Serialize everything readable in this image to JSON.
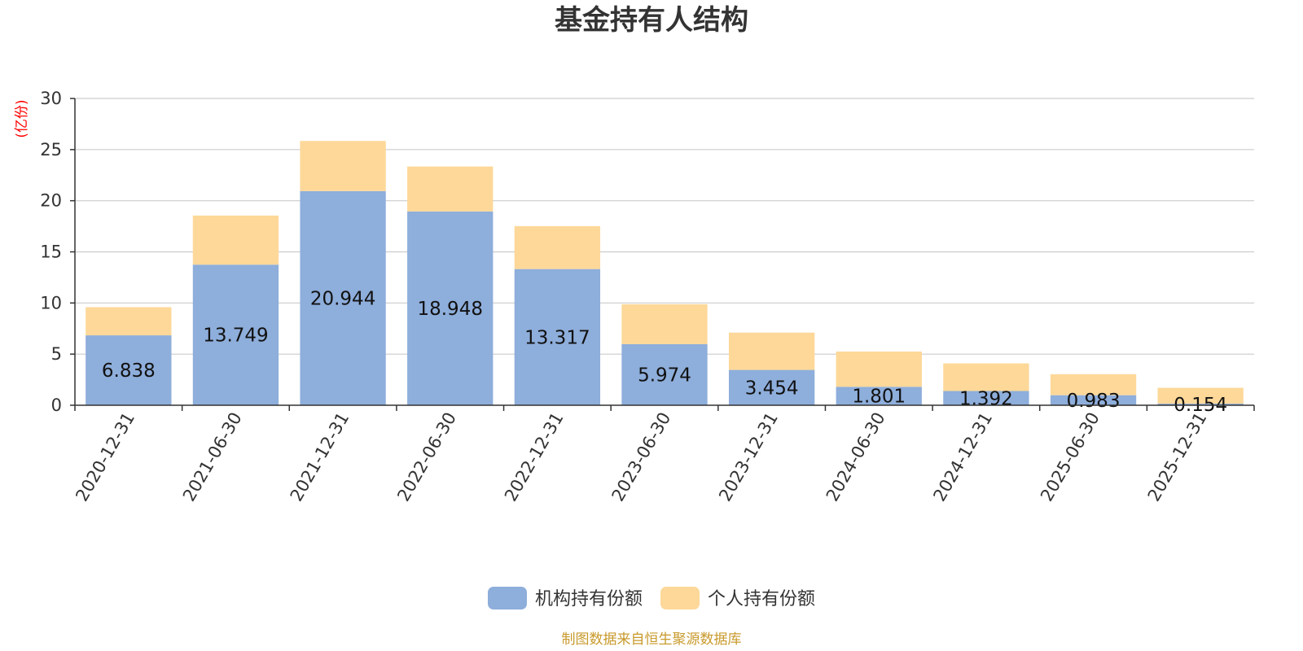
{
  "chart_data": {
    "type": "bar",
    "stacked": true,
    "title": "基金持有人结构",
    "unit_label": "(亿份)",
    "ylim": [
      0,
      30
    ],
    "yticks": [
      0,
      5,
      10,
      15,
      20,
      25,
      30
    ],
    "grid": true,
    "legend_position": "bottom",
    "categories": [
      "2020-12-31",
      "2021-06-30",
      "2021-12-31",
      "2022-06-30",
      "2022-12-31",
      "2023-06-30",
      "2023-12-31",
      "2024-06-30",
      "2024-12-31",
      "2025-06-30",
      "2025-12-31"
    ],
    "series": [
      {
        "name": "机构持有份额",
        "color": "#8eaedb",
        "values": [
          6.838,
          13.749,
          20.944,
          18.948,
          13.317,
          5.974,
          3.454,
          1.801,
          1.392,
          0.983,
          0.154
        ],
        "labels": [
          "6.838",
          "13.749",
          "20.944",
          "18.948",
          "13.317",
          "5.974",
          "3.454",
          "1.801",
          "1.392",
          "0.983",
          "0.154"
        ]
      },
      {
        "name": "个人持有份额",
        "color": "#fdd899",
        "values": [
          2.75,
          4.8,
          4.9,
          4.4,
          4.2,
          3.9,
          3.65,
          3.45,
          2.7,
          2.05,
          1.55
        ]
      }
    ],
    "source": "制图数据来自恒生聚源数据库"
  }
}
